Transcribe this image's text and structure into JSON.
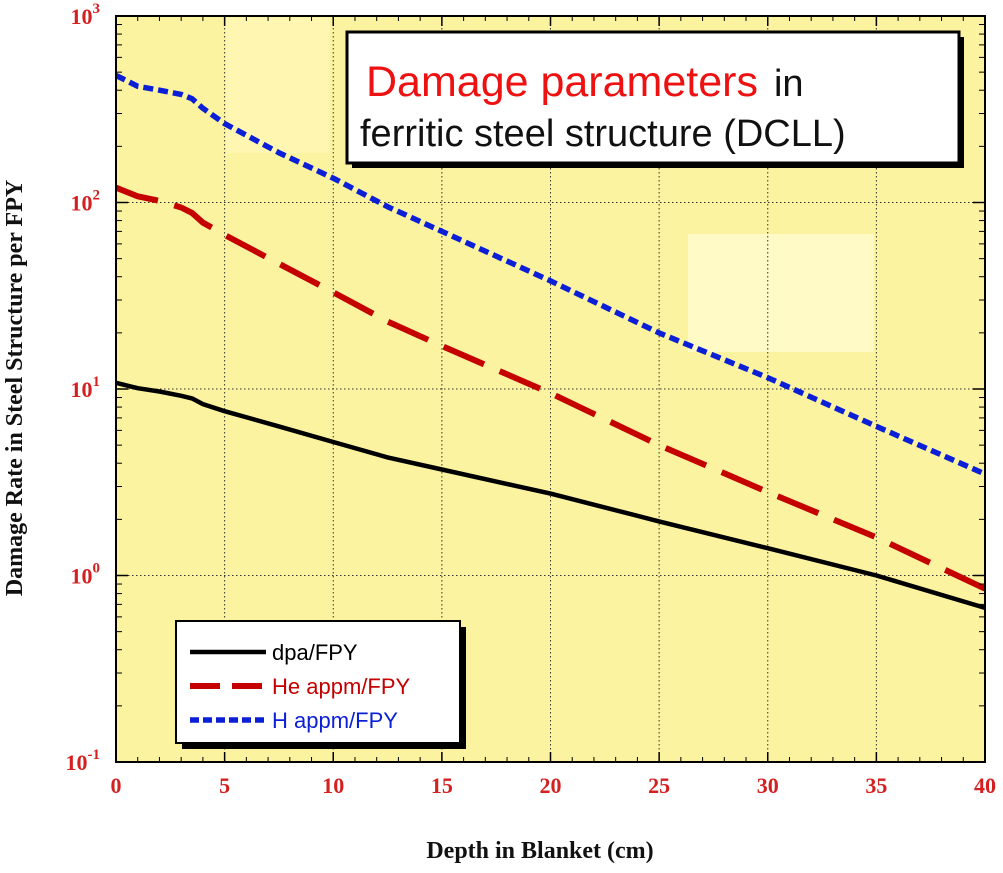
{
  "colors": {
    "plot_background": "#fcf3a0",
    "dpa": "#000000",
    "he": "#c40000",
    "h": "#0a1fd6",
    "tick_labels": "#d42020"
  },
  "chart_data": {
    "type": "line",
    "title_highlight": "Damage parameters",
    "title_rest_line1": "in",
    "title_line2": "ferritic steel structure (DCLL)",
    "xlabel": "Depth in Blanket (cm)",
    "ylabel": "Damage Rate in Steel Structure per FPY",
    "xlim": [
      0,
      40
    ],
    "ylim": [
      0.1,
      1000
    ],
    "yscale": "log",
    "grid": true,
    "legend_position": "bottom-left",
    "x_ticks": [
      0,
      5,
      10,
      15,
      20,
      25,
      30,
      35,
      40
    ],
    "x_tick_labels": [
      "0",
      "5",
      "10",
      "15",
      "20",
      "25",
      "30",
      "35",
      "40"
    ],
    "y_ticks": [
      0.1,
      1,
      10,
      100,
      1000
    ],
    "y_tick_labels": [
      {
        "base": "10",
        "exp": "-1"
      },
      {
        "base": "10",
        "exp": "0"
      },
      {
        "base": "10",
        "exp": "1"
      },
      {
        "base": "10",
        "exp": "2"
      },
      {
        "base": "10",
        "exp": "3"
      }
    ],
    "series": [
      {
        "name": "dpa/FPY",
        "style": "solid",
        "x": [
          0,
          1,
          2,
          3,
          3.5,
          4,
          5,
          7.5,
          10,
          12.5,
          15,
          20,
          25,
          30,
          35,
          40
        ],
        "y": [
          10.8,
          10.1,
          9.7,
          9.2,
          8.9,
          8.3,
          7.6,
          6.3,
          5.2,
          4.3,
          3.7,
          2.75,
          1.95,
          1.4,
          1.0,
          0.67
        ]
      },
      {
        "name": "He appm/FPY",
        "style": "dashed",
        "x": [
          0,
          1,
          2,
          3,
          3.5,
          4,
          5,
          7.5,
          10,
          12.5,
          15,
          20,
          25,
          30,
          35,
          40
        ],
        "y": [
          120,
          108,
          102,
          94,
          88,
          78,
          67,
          47,
          33,
          23,
          17,
          9.5,
          5.0,
          2.8,
          1.6,
          0.85
        ]
      },
      {
        "name": "H appm/FPY",
        "style": "dotted",
        "x": [
          0,
          1,
          2,
          3,
          3.5,
          4,
          5,
          7.5,
          10,
          12.5,
          15,
          20,
          25,
          30,
          35,
          40
        ],
        "y": [
          480,
          420,
          400,
          380,
          360,
          320,
          265,
          185,
          135,
          95,
          70,
          38,
          20,
          11.5,
          6.3,
          3.5
        ]
      }
    ]
  }
}
